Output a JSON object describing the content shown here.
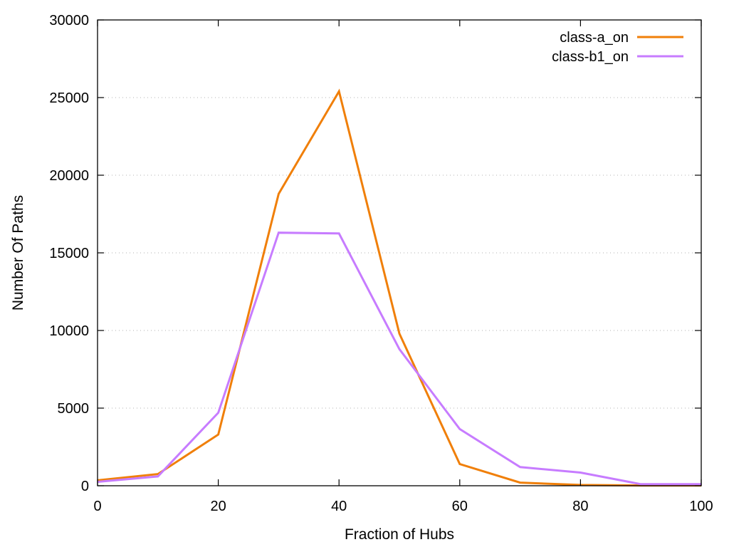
{
  "chart_data": {
    "type": "line",
    "title": "",
    "xlabel": "Fraction of Hubs",
    "ylabel": "Number Of Paths",
    "xlim": [
      0,
      100
    ],
    "ylim": [
      0,
      30000
    ],
    "x_ticks": [
      0,
      20,
      40,
      60,
      80,
      100
    ],
    "y_ticks": [
      0,
      5000,
      10000,
      15000,
      20000,
      25000,
      30000
    ],
    "grid": "horizontal dotted",
    "legend_position": "top-right",
    "x": [
      0,
      10,
      20,
      30,
      40,
      50,
      60,
      70,
      80,
      90,
      100
    ],
    "series": [
      {
        "name": "class-a_on",
        "color": "#f07f09",
        "values": [
          350,
          750,
          3300,
          18800,
          25400,
          9800,
          1400,
          200,
          50,
          20,
          20
        ]
      },
      {
        "name": "class-b1_on",
        "color": "#c77cff",
        "values": [
          250,
          600,
          4700,
          16300,
          16250,
          8800,
          3650,
          1200,
          850,
          100,
          100
        ]
      }
    ]
  }
}
